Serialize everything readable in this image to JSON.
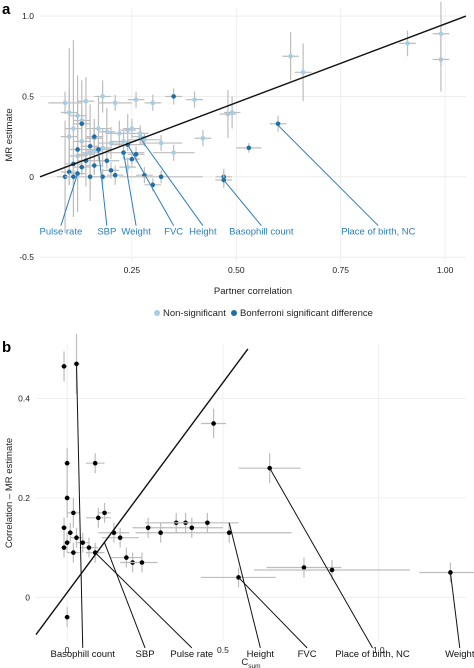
{
  "colors": {
    "nonsig": "#a6cde6",
    "sig": "#1f6fa8",
    "label_a": "#2c7fb8",
    "err": "#bdbdbd",
    "grid": "#ebebeb"
  },
  "chart_data": [
    {
      "panel": "a",
      "type": "scatter",
      "xlabel": "Partner correlation",
      "ylabel": "MR estimate",
      "xlim": [
        0.03,
        1.05
      ],
      "ylim": [
        -0.53,
        1.05
      ],
      "xticks": [
        0.25,
        0.5,
        0.75,
        1.0
      ],
      "xtick_labels": [
        "0.25",
        "0.50",
        "0.75",
        "1.00"
      ],
      "yticks": [
        -0.5,
        0,
        0.5,
        1.0
      ],
      "ytick_labels": [
        "-0.5",
        "0",
        "0.5",
        "1.0"
      ],
      "grid": true,
      "reference_line": {
        "type": "identity",
        "x": [
          0.03,
          1.05
        ],
        "y": [
          0.0,
          1.0
        ]
      },
      "legend": {
        "placement": "bottom",
        "entries": [
          "Non-significant",
          "Bonferroni significant difference"
        ]
      },
      "series": [
        {
          "name": "Non-significant",
          "points": [
            [
              0.09,
              0.46,
              0.04,
              0.07
            ],
            [
              0.11,
              0.3,
              0.02,
              0.55
            ],
            [
              0.12,
              0.38,
              0.02,
              0.25
            ],
            [
              0.1,
              0.25,
              0.02,
              0.3
            ],
            [
              0.13,
              0.22,
              0.02,
              0.2
            ],
            [
              0.14,
              0.47,
              0.02,
              0.15
            ],
            [
              0.15,
              0.15,
              0.02,
              0.3
            ],
            [
              0.16,
              0.24,
              0.02,
              0.12
            ],
            [
              0.17,
              0.3,
              0.03,
              0.2
            ],
            [
              0.18,
              0.5,
              0.02,
              0.1
            ],
            [
              0.19,
              0.28,
              0.02,
              0.15
            ],
            [
              0.2,
              0.21,
              0.03,
              0.1
            ],
            [
              0.21,
              0.46,
              0.04,
              0.05
            ],
            [
              0.22,
              0.27,
              0.03,
              0.08
            ],
            [
              0.23,
              0.22,
              0.03,
              0.08
            ],
            [
              0.24,
              0.29,
              0.02,
              0.1
            ],
            [
              0.25,
              0.3,
              0.02,
              0.06
            ],
            [
              0.26,
              0.48,
              0.02,
              0.05
            ],
            [
              0.27,
              0.25,
              0.02,
              0.05
            ],
            [
              0.28,
              0.23,
              0.04,
              0.04
            ],
            [
              0.3,
              0.46,
              0.02,
              0.05
            ],
            [
              0.32,
              0.21,
              0.05,
              0.05
            ],
            [
              0.35,
              0.15,
              0.05,
              0.05
            ],
            [
              0.4,
              0.48,
              0.02,
              0.05
            ],
            [
              0.42,
              0.24,
              0.02,
              0.05
            ],
            [
              0.48,
              0.39,
              0.02,
              0.15
            ],
            [
              0.49,
              0.4,
              0.02,
              0.1
            ],
            [
              0.12,
              0.13,
              0.02,
              0.35
            ],
            [
              0.14,
              0.14,
              0.02,
              0.2
            ],
            [
              0.16,
              0.16,
              0.02,
              0.15
            ],
            [
              0.18,
              0.18,
              0.02,
              0.12
            ],
            [
              0.13,
              0.35,
              0.02,
              0.25
            ],
            [
              0.1,
              0.4,
              0.02,
              0.4
            ],
            [
              0.63,
              0.75,
              0.02,
              0.15
            ],
            [
              0.66,
              0.65,
              0.02,
              0.18
            ],
            [
              0.91,
              0.83,
              0.02,
              0.08
            ],
            [
              0.99,
              0.73,
              0.02,
              0.2
            ],
            [
              0.99,
              0.89,
              0.02,
              0.2
            ],
            [
              0.24,
              0.06,
              0.02,
              0.06
            ],
            [
              0.27,
              0.27,
              0.02,
              0.05
            ]
          ]
        },
        {
          "name": "Bonferroni significant difference",
          "points": [
            [
              0.09,
              0.0,
              0.02,
              0.35
            ],
            [
              0.1,
              0.03,
              0.02,
              0.08
            ],
            [
              0.11,
              0.0,
              0.02,
              0.1
            ],
            [
              0.11,
              0.08,
              0.02,
              0.05
            ],
            [
              0.12,
              0.02,
              0.02,
              0.06
            ],
            [
              0.13,
              0.06,
              0.02,
              0.05
            ],
            [
              0.14,
              0.1,
              0.02,
              0.06
            ],
            [
              0.15,
              0.0,
              0.02,
              0.08
            ],
            [
              0.15,
              0.19,
              0.02,
              0.1
            ],
            [
              0.16,
              0.07,
              0.02,
              0.05
            ],
            [
              0.17,
              0.17,
              0.03,
              0.05
            ],
            [
              0.18,
              0.0,
              0.02,
              0.05
            ],
            [
              0.19,
              0.1,
              0.03,
              0.05
            ],
            [
              0.2,
              0.04,
              0.02,
              0.05
            ],
            [
              0.21,
              0.01,
              0.02,
              0.06
            ],
            [
              0.23,
              0.15,
              0.05,
              0.04
            ],
            [
              0.24,
              0.2,
              0.04,
              0.04
            ],
            [
              0.25,
              0.11,
              0.02,
              0.05
            ],
            [
              0.26,
              0.14,
              0.02,
              0.05
            ],
            [
              0.28,
              0.01,
              0.02,
              0.05
            ],
            [
              0.3,
              -0.05,
              0.02,
              0.04
            ],
            [
              0.32,
              0.0,
              0.1,
              0.04
            ],
            [
              0.35,
              0.5,
              0.02,
              0.05
            ],
            [
              0.47,
              0.0,
              0.02,
              0.05
            ],
            [
              0.47,
              -0.02,
              0.02,
              0.05
            ],
            [
              0.53,
              0.18,
              0.03,
              0.03
            ],
            [
              0.6,
              0.33,
              0.02,
              0.05
            ],
            [
              0.16,
              0.25,
              0.02,
              0.05
            ],
            [
              0.13,
              0.33,
              0.02,
              0.06
            ],
            [
              0.12,
              0.17,
              0.02,
              0.08
            ]
          ]
        }
      ],
      "annotations": [
        {
          "label": "Pulse rate",
          "tx": 0.08,
          "ty": -0.36,
          "px": 0.12,
          "py": 0.02
        },
        {
          "label": "SBP",
          "tx": 0.19,
          "ty": -0.36,
          "px": 0.17,
          "py": 0.17
        },
        {
          "label": "Weight",
          "tx": 0.26,
          "ty": -0.36,
          "px": 0.23,
          "py": 0.15
        },
        {
          "label": "FVC",
          "tx": 0.35,
          "ty": -0.36,
          "px": 0.24,
          "py": 0.2
        },
        {
          "label": "Height",
          "tx": 0.42,
          "ty": -0.36,
          "px": 0.27,
          "py": 0.24
        },
        {
          "label": "Basophill count",
          "tx": 0.56,
          "ty": -0.36,
          "px": 0.47,
          "py": -0.02
        },
        {
          "label": "Place of birth, NC",
          "tx": 0.84,
          "ty": -0.36,
          "px": 0.6,
          "py": 0.32
        }
      ]
    },
    {
      "panel": "b",
      "type": "scatter",
      "xlabel": "C",
      "xlabel_sub": "sum",
      "ylabel": "Correlation – MR estimate",
      "xlim": [
        -0.1,
        1.28
      ],
      "ylim": [
        -0.09,
        0.51
      ],
      "xticks": [
        0,
        0.5,
        1.0
      ],
      "xtick_labels": [
        "0",
        "0.5",
        "1.0"
      ],
      "yticks": [
        0,
        0.2,
        0.4
      ],
      "ytick_labels": [
        "0",
        "0.2",
        "0.4"
      ],
      "grid": true,
      "reference_line": {
        "type": "diagonal",
        "x": [
          -0.1,
          0.58
        ],
        "y": [
          -0.075,
          0.5
        ]
      },
      "points": [
        [
          -0.01,
          0.465,
          0.01,
          0.03
        ],
        [
          0.03,
          0.47,
          0.01,
          0.06
        ],
        [
          0.0,
          0.27,
          0.01,
          0.03
        ],
        [
          0.09,
          0.27,
          0.03,
          0.02
        ],
        [
          0.0,
          0.2,
          0.01,
          0.04
        ],
        [
          0.02,
          0.17,
          0.02,
          0.03
        ],
        [
          0.1,
          0.16,
          0.04,
          0.02
        ],
        [
          0.12,
          0.17,
          0.02,
          0.02
        ],
        [
          -0.01,
          0.14,
          0.01,
          0.02
        ],
        [
          0.01,
          0.13,
          0.01,
          0.02
        ],
        [
          0.03,
          0.12,
          0.02,
          0.02
        ],
        [
          0.05,
          0.11,
          0.02,
          0.02
        ],
        [
          -0.01,
          0.1,
          0.01,
          0.02
        ],
        [
          0.0,
          0.11,
          0.01,
          0.02
        ],
        [
          0.02,
          0.09,
          0.02,
          0.02
        ],
        [
          0.07,
          0.1,
          0.03,
          0.02
        ],
        [
          0.09,
          0.09,
          0.03,
          0.02
        ],
        [
          0.15,
          0.13,
          0.05,
          0.02
        ],
        [
          0.17,
          0.12,
          0.06,
          0.02
        ],
        [
          0.19,
          0.08,
          0.05,
          0.02
        ],
        [
          0.21,
          0.07,
          0.04,
          0.02
        ],
        [
          0.24,
          0.07,
          0.05,
          0.02
        ],
        [
          0.26,
          0.14,
          0.05,
          0.02
        ],
        [
          0.3,
          0.13,
          0.08,
          0.02
        ],
        [
          0.35,
          0.15,
          0.1,
          0.02
        ],
        [
          0.38,
          0.15,
          0.08,
          0.02
        ],
        [
          0.4,
          0.14,
          0.1,
          0.02
        ],
        [
          0.45,
          0.15,
          0.1,
          0.02
        ],
        [
          0.47,
          0.35,
          0.04,
          0.03
        ],
        [
          0.52,
          0.13,
          0.2,
          0.02
        ],
        [
          0.55,
          0.04,
          0.12,
          0.02
        ],
        [
          0.65,
          0.26,
          0.1,
          0.03
        ],
        [
          0.76,
          0.06,
          0.12,
          0.02
        ],
        [
          0.85,
          0.055,
          0.25,
          0.02
        ],
        [
          1.23,
          0.05,
          0.1,
          0.02
        ],
        [
          0.0,
          -0.04,
          0.01,
          0.02
        ]
      ],
      "annotations": [
        {
          "label": "Basophill count",
          "tx": 0.05,
          "ty": -0.12,
          "px": 0.03,
          "py": 0.47
        },
        {
          "label": "SBP",
          "tx": 0.25,
          "ty": -0.12,
          "px": 0.12,
          "py": 0.11
        },
        {
          "label": "Pulse rate",
          "tx": 0.4,
          "ty": -0.12,
          "px": 0.09,
          "py": 0.09
        },
        {
          "label": "Height",
          "tx": 0.62,
          "ty": -0.12,
          "px": 0.52,
          "py": 0.15
        },
        {
          "label": "FVC",
          "tx": 0.77,
          "ty": -0.12,
          "px": 0.55,
          "py": 0.04
        },
        {
          "label": "Place of birth, NC",
          "tx": 0.98,
          "ty": -0.12,
          "px": 0.65,
          "py": 0.26
        },
        {
          "label": "Weight",
          "tx": 1.26,
          "ty": -0.12,
          "px": 1.23,
          "py": 0.05
        }
      ]
    }
  ]
}
